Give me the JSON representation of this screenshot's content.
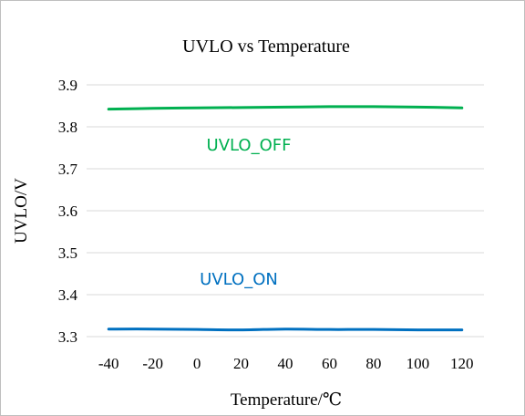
{
  "chart_data": {
    "type": "line",
    "title": "UVLO vs Temperature",
    "xlabel": "Temperature/℃",
    "ylabel": "UVLO/V",
    "x": [
      -40,
      -20,
      0,
      20,
      40,
      60,
      80,
      100,
      120
    ],
    "x_tick_labels": [
      "-40",
      "-20",
      "0",
      "20",
      "40",
      "60",
      "80",
      "100",
      "120"
    ],
    "ylim": [
      3.3,
      3.9
    ],
    "y_ticks": [
      3.3,
      3.4,
      3.5,
      3.6,
      3.7,
      3.8,
      3.9
    ],
    "y_tick_labels": [
      "3.3",
      "3.4",
      "3.5",
      "3.6",
      "3.7",
      "3.8",
      "3.9"
    ],
    "grid": "horizontal",
    "series": [
      {
        "name": "UVLO_OFF",
        "color": "#00b050",
        "values": [
          3.842,
          3.844,
          3.845,
          3.846,
          3.847,
          3.848,
          3.848,
          3.847,
          3.845
        ]
      },
      {
        "name": "UVLO_ON",
        "color": "#0070c0",
        "values": [
          3.318,
          3.318,
          3.317,
          3.316,
          3.318,
          3.317,
          3.317,
          3.316,
          3.316
        ]
      }
    ]
  }
}
